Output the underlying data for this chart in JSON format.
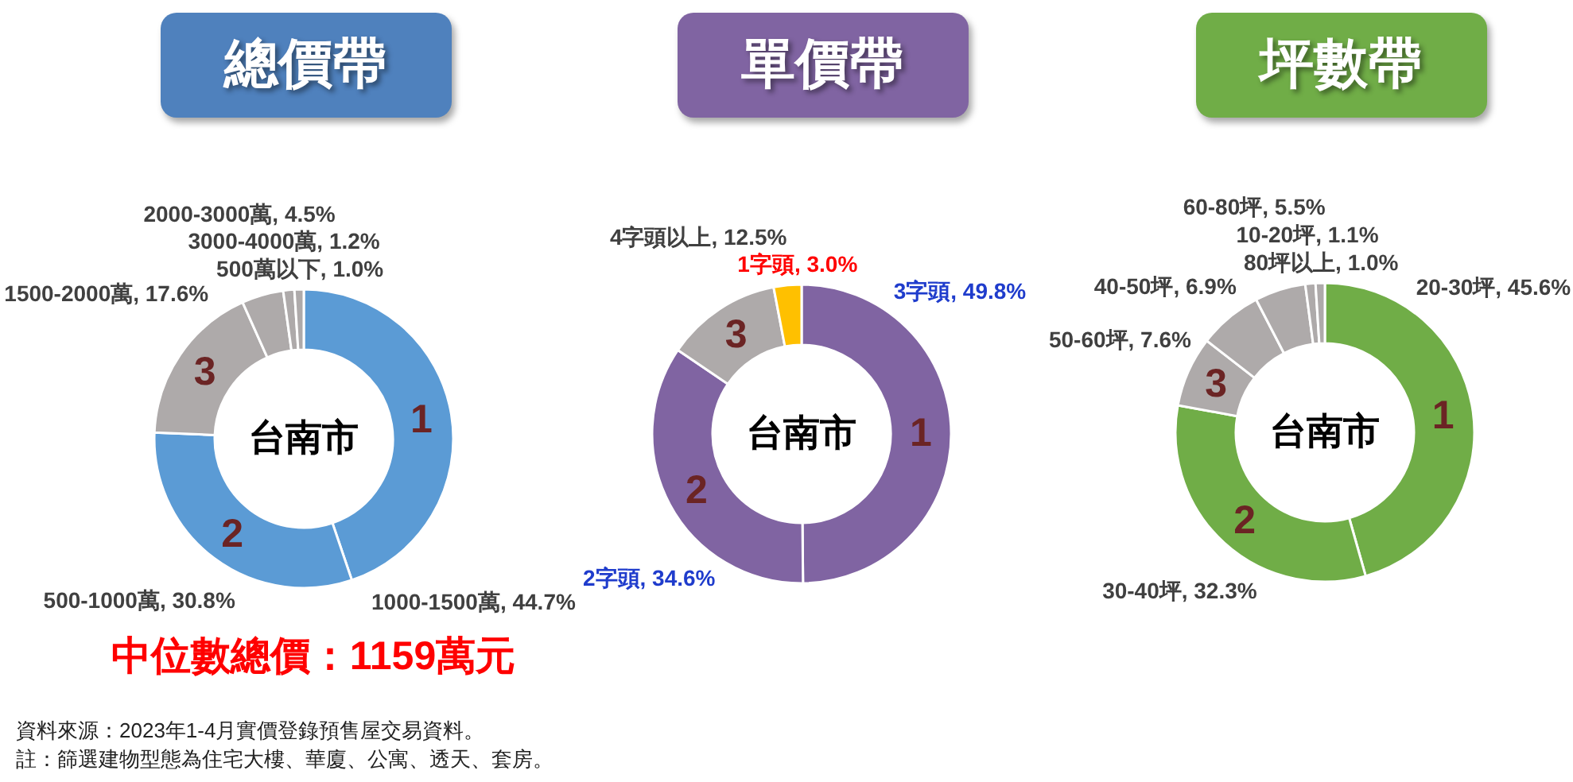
{
  "chart_data": [
    {
      "type": "donut",
      "title": "總價帶",
      "categories": [
        "1000-1500萬",
        "500-1000萬",
        "1500-2000萬",
        "2000-3000萬",
        "3000-4000萬",
        "500萬以下"
      ],
      "values": [
        44.7,
        30.8,
        17.6,
        4.5,
        1.2,
        1.0
      ],
      "colors": [
        "#5b9bd5",
        "#5b9bd5",
        "#aeaaaa",
        "#aeaaaa",
        "#aeaaaa",
        "#aeaaaa"
      ],
      "value_labels": [
        "44.7%",
        "30.8%",
        "17.6%",
        "4.5%",
        "1.2%",
        "1.0%"
      ],
      "annotations": [
        "台南市",
        {
          "text": "1",
          "x": "1000-1500萬"
        },
        {
          "text": "2",
          "x": "500-1000萬"
        },
        {
          "text": "3",
          "x": "1500-2000萬"
        },
        "中位數總價：1159萬元",
        "資料來源：2023年1-4月實價登錄預售屋交易資料。",
        "註：篩選建物型態為住宅大樓、華廈、公寓、透天、套房。"
      ]
    },
    {
      "type": "donut",
      "title": "單價帶",
      "categories": [
        "3字頭",
        "2字頭",
        "4字頭以上",
        "1字頭"
      ],
      "values": [
        49.8,
        34.6,
        12.5,
        3.0
      ],
      "colors": [
        "#8064a2",
        "#8064a2",
        "#aeaaaa",
        "#ffc000"
      ],
      "value_labels": [
        "49.8%",
        "34.6%",
        "12.5%",
        "3.0%"
      ],
      "annotations": [
        "台南市",
        {
          "text": "1",
          "x": "3字頭"
        },
        {
          "text": "2",
          "x": "2字頭"
        },
        {
          "text": "3",
          "x": "4字頭以上"
        }
      ]
    },
    {
      "type": "donut",
      "title": "坪數帶",
      "categories": [
        "20-30坪",
        "30-40坪",
        "50-60坪",
        "40-50坪",
        "60-80坪",
        "10-20坪",
        "80坪以上"
      ],
      "values": [
        45.6,
        32.3,
        7.6,
        6.9,
        5.5,
        1.1,
        1.0
      ],
      "colors": [
        "#70ad47",
        "#70ad47",
        "#aeaaaa",
        "#aeaaaa",
        "#aeaaaa",
        "#aeaaaa",
        "#aeaaaa"
      ],
      "value_labels": [
        "45.6%",
        "32.3%",
        "7.6%",
        "6.9%",
        "5.5%",
        "1.1%",
        "1.0%"
      ],
      "annotations": [
        "台南市",
        {
          "text": "1",
          "x": "20-30坪"
        },
        {
          "text": "2",
          "x": "30-40坪"
        },
        {
          "text": "3",
          "x": "50-60坪"
        }
      ]
    }
  ]
}
